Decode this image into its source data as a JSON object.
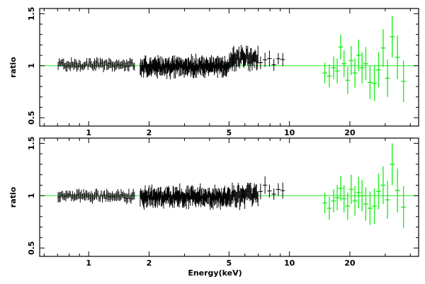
{
  "chart_data": [
    {
      "type": "scatter",
      "title": "",
      "xlabel": "",
      "ylabel": "ratio",
      "xscale": "log",
      "xlim": [
        0.57,
        44
      ],
      "ylim": [
        0.42,
        1.55
      ],
      "xtick_values": [
        1,
        2,
        5,
        10,
        20
      ],
      "xtick_labels": [
        "1",
        "2",
        "5",
        "10",
        "20"
      ],
      "ytick_values": [
        0.5,
        1,
        1.5
      ],
      "ytick_labels": [
        "0.5",
        "1",
        "1.5"
      ],
      "reference_line": 1.0,
      "colors": {
        "soft": "#000000",
        "hard": "#22ee22",
        "reference": "#22ee22"
      },
      "series": [
        {
          "band": [
            0.7,
            1.7
          ],
          "mean": 1.01,
          "noise": 0.025,
          "err": 0.045,
          "count": 70
        },
        {
          "band": [
            1.8,
            5.0
          ],
          "mean": 0.99,
          "noise": 0.045,
          "err": 0.07,
          "count": 160
        },
        {
          "band": [
            5.0,
            7.0
          ],
          "mean": 1.07,
          "noise": 0.05,
          "err": 0.08,
          "count": 40
        },
        {
          "band": [
            7.0,
            9.5
          ],
          "mean": 1.05,
          "noise": 0.05,
          "err": 0.07,
          "count": 6
        },
        {
          "x": [
            15.0,
            15.8,
            16.6,
            17.3,
            18.0,
            18.7,
            19.5,
            20.3,
            21.2,
            22.1,
            23.0,
            24.0,
            25.2,
            26.5,
            27.8,
            29.3,
            30.8,
            32.5,
            34.5,
            37.0
          ],
          "y": [
            0.93,
            0.9,
            0.98,
            0.95,
            1.18,
            1.02,
            0.86,
            1.05,
            0.93,
            1.1,
            0.98,
            1.02,
            0.84,
            0.83,
            0.96,
            1.17,
            0.88,
            1.28,
            1.08,
            0.85
          ],
          "yerr": [
            0.1,
            0.11,
            0.11,
            0.12,
            0.12,
            0.13,
            0.13,
            0.14,
            0.14,
            0.15,
            0.15,
            0.16,
            0.16,
            0.17,
            0.17,
            0.18,
            0.18,
            0.2,
            0.21,
            0.2
          ]
        }
      ]
    },
    {
      "type": "scatter",
      "title": "",
      "xlabel": "Energy(keV)",
      "ylabel": "ratio",
      "xscale": "log",
      "xlim": [
        0.57,
        44
      ],
      "ylim": [
        0.42,
        1.55
      ],
      "xtick_values": [
        1,
        2,
        5,
        10,
        20
      ],
      "xtick_labels": [
        "1",
        "2",
        "5",
        "10",
        "20"
      ],
      "ytick_values": [
        0.5,
        1,
        1.5
      ],
      "ytick_labels": [
        "0.5",
        "1",
        "1.5"
      ],
      "reference_line": 1.0,
      "colors": {
        "soft": "#000000",
        "hard": "#22ee22",
        "reference": "#22ee22"
      },
      "series": [
        {
          "band": [
            0.7,
            1.7
          ],
          "mean": 0.995,
          "noise": 0.025,
          "err": 0.045,
          "count": 70
        },
        {
          "band": [
            1.8,
            5.0
          ],
          "mean": 0.99,
          "noise": 0.045,
          "err": 0.07,
          "count": 160
        },
        {
          "band": [
            5.0,
            7.0
          ],
          "mean": 1.0,
          "noise": 0.05,
          "err": 0.08,
          "count": 40
        },
        {
          "band": [
            7.0,
            9.5
          ],
          "mean": 1.06,
          "noise": 0.05,
          "err": 0.07,
          "count": 6
        },
        {
          "x": [
            15.0,
            15.8,
            16.6,
            17.3,
            18.0,
            18.7,
            19.5,
            20.3,
            21.2,
            22.1,
            23.0,
            24.0,
            25.2,
            26.5,
            27.8,
            29.3,
            30.8,
            32.5,
            34.5,
            37.0
          ],
          "y": [
            0.93,
            0.88,
            0.95,
            0.98,
            1.07,
            0.97,
            0.9,
            1.06,
            0.95,
            1.03,
            1.0,
            0.92,
            0.88,
            0.9,
            1.04,
            1.1,
            0.96,
            1.3,
            1.05,
            0.89
          ],
          "yerr": [
            0.1,
            0.11,
            0.11,
            0.12,
            0.12,
            0.13,
            0.13,
            0.14,
            0.14,
            0.15,
            0.15,
            0.16,
            0.16,
            0.17,
            0.17,
            0.18,
            0.18,
            0.2,
            0.21,
            0.2
          ]
        }
      ]
    }
  ]
}
